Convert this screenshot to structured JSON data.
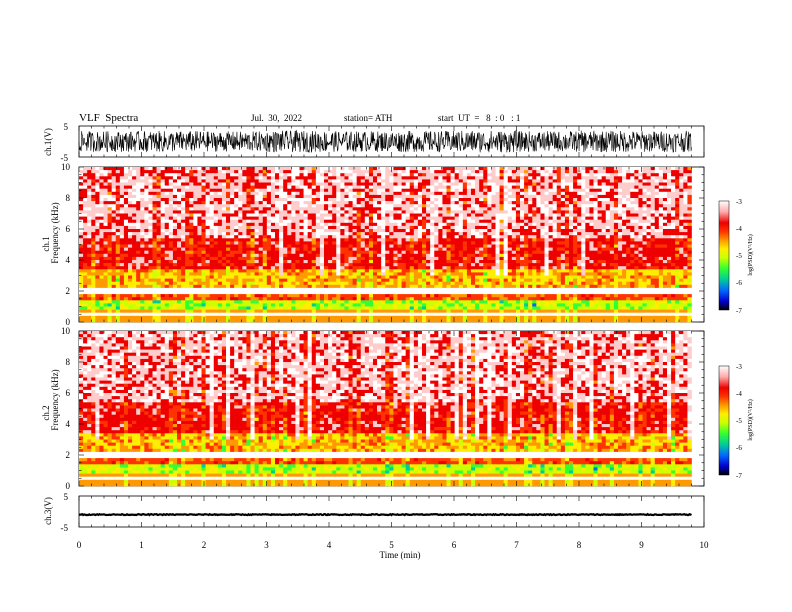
{
  "header": {
    "title": "VLF  Spectra",
    "date": "Jul.  30,  2022",
    "station": "station= ATH",
    "start": "start  UT  =   8  : 0   : 1"
  },
  "colors": {
    "colormap": [
      "#000000",
      "#0000cc",
      "#0066ff",
      "#00cc99",
      "#33ff33",
      "#ccff00",
      "#ffee00",
      "#ff9900",
      "#ff3300",
      "#ee0000",
      "#ffcccc",
      "#ffffff"
    ]
  },
  "chart_data": [
    {
      "type": "line",
      "panel": "ch1-waveform",
      "ylabel": "ch.1(V)",
      "ylim": [
        -5,
        5
      ],
      "yticks": [
        "5",
        "-5"
      ],
      "x": [
        0,
        1,
        2,
        3,
        4,
        5,
        6,
        7,
        8,
        9,
        9.8
      ],
      "y_envelope": [
        4.2,
        4.3,
        4.1,
        4.4,
        4.2,
        4.3,
        4.5,
        4.2,
        4.4,
        4.3,
        4.2
      ]
    },
    {
      "type": "heatmap",
      "panel": "ch1-spectrogram",
      "ylabel_lines": [
        "ch.1",
        "Frequency  (kHz)"
      ],
      "ylim": [
        0,
        10
      ],
      "yticks": [
        "0",
        "2",
        "4",
        "6",
        "8",
        "10"
      ],
      "xlim": [
        0,
        10
      ],
      "colorbar": {
        "label": "log(PSD)(V²/Hz)",
        "ticks": [
          "-3",
          "-4",
          "-5",
          "-6",
          "-7"
        ],
        "range": [
          -7,
          -3
        ]
      }
    },
    {
      "type": "heatmap",
      "panel": "ch2-spectrogram",
      "ylabel_lines": [
        "ch.2",
        "Frequency  (kHz)"
      ],
      "ylim": [
        0,
        10
      ],
      "yticks": [
        "0",
        "2",
        "4",
        "6",
        "8",
        "10"
      ],
      "xlim": [
        0,
        10
      ],
      "colorbar": {
        "label": "log(PSD)(V²/Hz)",
        "ticks": [
          "-3",
          "-4",
          "-5",
          "-6",
          "-7"
        ],
        "range": [
          -7,
          -3
        ]
      }
    },
    {
      "type": "line",
      "panel": "ch3-waveform",
      "ylabel": "ch.3(V)",
      "ylim": [
        -5,
        5
      ],
      "yticks": [
        "5",
        "-5"
      ],
      "x": [
        0,
        9.8
      ],
      "y": [
        -1,
        -1
      ]
    }
  ],
  "xaxis": {
    "label": "Time  (min)",
    "ticks": [
      "0",
      "1",
      "2",
      "3",
      "4",
      "5",
      "6",
      "7",
      "8",
      "9",
      "10"
    ]
  }
}
